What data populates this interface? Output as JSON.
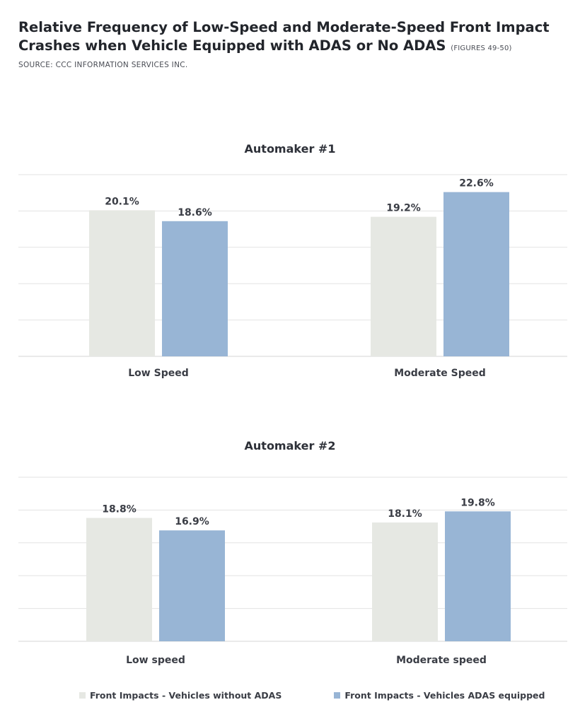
{
  "header": {
    "title": "Relative Frequency of Low-Speed and Moderate-Speed Front Impact Crashes when Vehicle Equipped with ADAS or No ADAS",
    "figures": "(FIGURES 49-50)",
    "source": "SOURCE: CCC INFORMATION SERVICES INC."
  },
  "colors": {
    "no_adas": "#e6e8e3",
    "adas": "#98b5d5",
    "grid": "#e3e3e3"
  },
  "chart_data": [
    {
      "type": "bar",
      "title": "Automaker #1",
      "categories": [
        "Low Speed",
        "Moderate Speed"
      ],
      "series": [
        {
          "name": "Front Impacts - Vehicles without ADAS",
          "values": [
            20.1,
            19.2
          ],
          "labels": [
            "20.1%",
            "19.2%"
          ]
        },
        {
          "name": "Front Impacts - Vehicles ADAS equipped",
          "values": [
            18.6,
            22.6
          ],
          "labels": [
            "18.6%",
            "22.6%"
          ]
        }
      ],
      "ylim": [
        0,
        25
      ],
      "grid": true
    },
    {
      "type": "bar",
      "title": "Automaker #2",
      "categories": [
        "Low speed",
        "Moderate speed"
      ],
      "series": [
        {
          "name": "Front Impacts - Vehicles without ADAS",
          "values": [
            18.8,
            18.1
          ],
          "labels": [
            "18.8%",
            "18.1%"
          ]
        },
        {
          "name": "Front Impacts - Vehicles ADAS equipped",
          "values": [
            16.9,
            19.8
          ],
          "labels": [
            "16.9%",
            "19.8%"
          ]
        }
      ],
      "ylim": [
        0,
        25
      ],
      "grid": true
    }
  ],
  "legend": {
    "no_adas": "Front Impacts - Vehicles without ADAS",
    "adas": "Front Impacts - Vehicles ADAS equipped"
  }
}
